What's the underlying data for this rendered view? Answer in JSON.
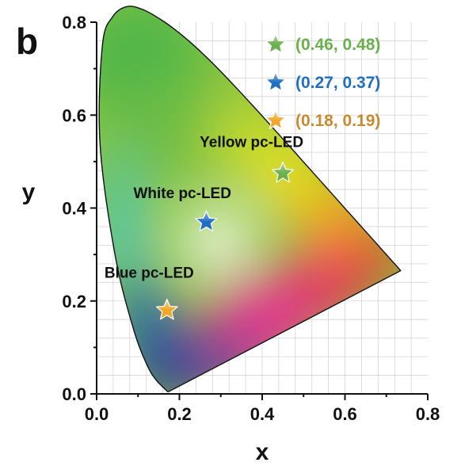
{
  "panel_label": "b",
  "chart_data": {
    "type": "scatter",
    "chart_kind": "CIE 1931 chromaticity diagram",
    "xlabel": "x",
    "ylabel": "y",
    "xlim": [
      0.0,
      0.8
    ],
    "ylim": [
      0.0,
      0.8
    ],
    "x_ticks": [
      "0.0",
      "0.2",
      "0.4",
      "0.6",
      "0.8"
    ],
    "y_ticks": [
      "0.0",
      "0.2",
      "0.4",
      "0.6",
      "0.8"
    ],
    "grid": true,
    "legend_position": "top-right",
    "series": [
      {
        "name": "Yellow pc-LED",
        "x": 0.46,
        "y": 0.48,
        "plotted_x": 0.45,
        "plotted_y": 0.475,
        "legend_text": "(0.46, 0.48)",
        "color": "#6ab04c",
        "marker": "star"
      },
      {
        "name": "White pc-LED",
        "x": 0.27,
        "y": 0.37,
        "plotted_x": 0.265,
        "plotted_y": 0.37,
        "legend_text": "(0.27, 0.37)",
        "color": "#1f6fc0",
        "marker": "star"
      },
      {
        "name": "Blue pc-LED",
        "x": 0.18,
        "y": 0.19,
        "plotted_x": 0.17,
        "plotted_y": 0.18,
        "legend_text": "(0.18, 0.19)",
        "color": "#f2a62a",
        "marker": "star"
      }
    ],
    "legend_text_colors": [
      "#6ab04c",
      "#1f6fc0",
      "#c98a2e"
    ],
    "spectral_locus": [
      [
        0.1741,
        0.005
      ],
      [
        0.1733,
        0.0048
      ],
      [
        0.1726,
        0.0048
      ],
      [
        0.1714,
        0.0051
      ],
      [
        0.1689,
        0.0069
      ],
      [
        0.1644,
        0.0109
      ],
      [
        0.1566,
        0.0177
      ],
      [
        0.144,
        0.0297
      ],
      [
        0.1241,
        0.0578
      ],
      [
        0.0913,
        0.1327
      ],
      [
        0.0454,
        0.295
      ],
      [
        0.0082,
        0.5384
      ],
      [
        0.0139,
        0.7502
      ],
      [
        0.0389,
        0.812
      ],
      [
        0.0743,
        0.8338
      ],
      [
        0.1142,
        0.8262
      ],
      [
        0.1547,
        0.8059
      ],
      [
        0.1929,
        0.7816
      ],
      [
        0.2296,
        0.7543
      ],
      [
        0.2658,
        0.7243
      ],
      [
        0.3016,
        0.6923
      ],
      [
        0.3373,
        0.6589
      ],
      [
        0.3731,
        0.6245
      ],
      [
        0.4087,
        0.5896
      ],
      [
        0.4441,
        0.5547
      ],
      [
        0.4788,
        0.5202
      ],
      [
        0.5125,
        0.4866
      ],
      [
        0.5448,
        0.4544
      ],
      [
        0.5752,
        0.4242
      ],
      [
        0.6029,
        0.3965
      ],
      [
        0.627,
        0.3725
      ],
      [
        0.6482,
        0.3514
      ],
      [
        0.6658,
        0.334
      ],
      [
        0.6801,
        0.3197
      ],
      [
        0.6915,
        0.3083
      ],
      [
        0.7006,
        0.2993
      ],
      [
        0.7079,
        0.292
      ],
      [
        0.714,
        0.2859
      ],
      [
        0.719,
        0.2809
      ],
      [
        0.723,
        0.277
      ],
      [
        0.726,
        0.274
      ],
      [
        0.7283,
        0.2717
      ],
      [
        0.73,
        0.27
      ],
      [
        0.7311,
        0.2689
      ],
      [
        0.732,
        0.268
      ],
      [
        0.7327,
        0.2673
      ],
      [
        0.7334,
        0.2666
      ],
      [
        0.734,
        0.266
      ],
      [
        0.7344,
        0.2656
      ],
      [
        0.7346,
        0.2654
      ],
      [
        0.7347,
        0.2653
      ]
    ],
    "colors": {
      "green": "#4fb648",
      "yellow": "#f0e21c",
      "red": "#e8241e",
      "magenta": "#e3348f",
      "blue": "#243f9c",
      "cyan": "#3ec6ea",
      "white": "#ffffff",
      "outline": "#111111"
    }
  }
}
